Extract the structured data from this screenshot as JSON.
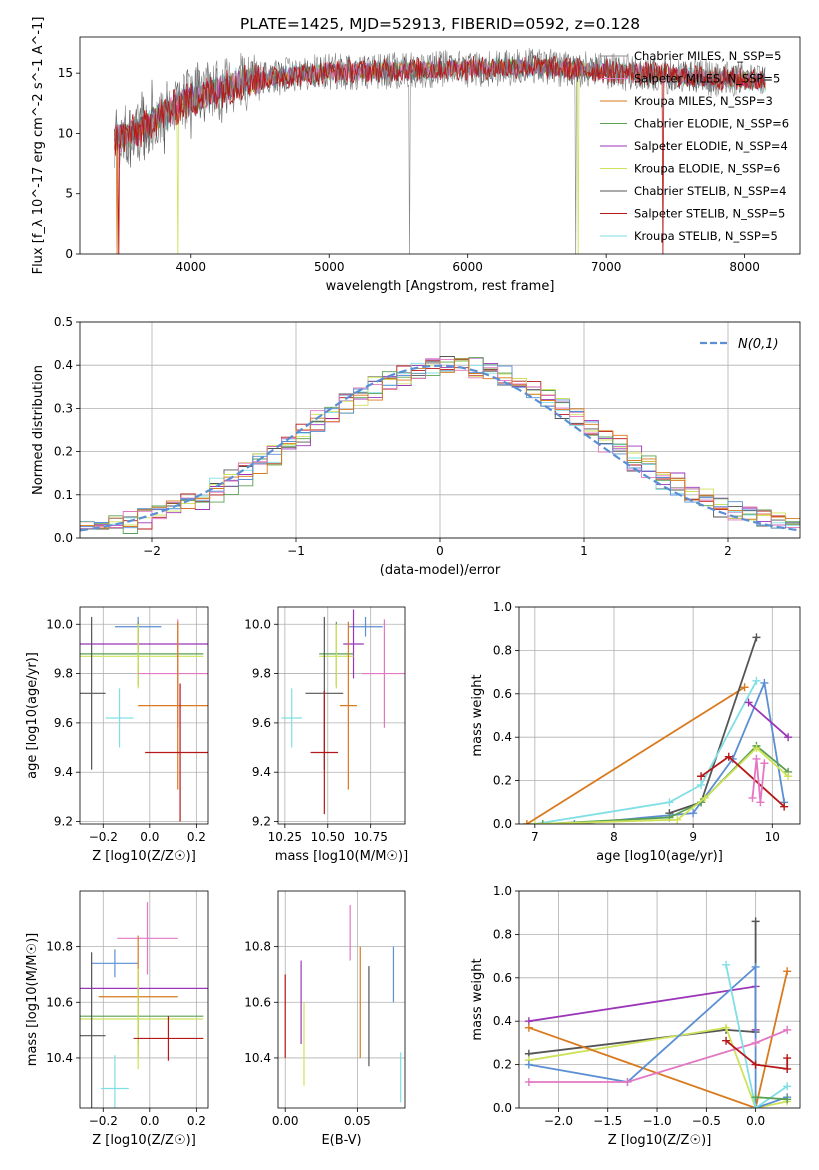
{
  "figure": {
    "title": "PLATE=1425, MJD=52913, FIBERID=0592, z=0.128"
  },
  "chart_data": [
    {
      "id": "spectrum",
      "type": "line",
      "xlabel": "wavelength [Angstrom, rest frame]",
      "ylabel": "Flux [f_λ 10^-17 erg cm^-2 s^-1 A^-1]",
      "xlim": [
        3200,
        8400
      ],
      "ylim": [
        0,
        18
      ],
      "xticks": [
        4000,
        5000,
        6000,
        7000,
        8000
      ],
      "yticks": [
        0,
        5,
        10,
        15
      ],
      "grid": false,
      "legend_position": "right",
      "data_range": [
        3450,
        8150
      ],
      "series": [
        {
          "name": "Chabrier MILES, N_SSP=5",
          "color": "#888888"
        },
        {
          "name": "Salpeter MILES, N_SSP=5",
          "color": "#e377c2"
        },
        {
          "name": "Kroupa MILES, N_SSP=3",
          "color": "#d97a1e"
        },
        {
          "name": "Chabrier ELODIE, N_SSP=6",
          "color": "#5aa052"
        },
        {
          "name": "Salpeter ELODIE, N_SSP=4",
          "color": "#9b36b8"
        },
        {
          "name": "Kroupa ELODIE, N_SSP=6",
          "color": "#cfe25a"
        },
        {
          "name": "Chabrier STELIB, N_SSP=4",
          "color": "#555555"
        },
        {
          "name": "Salpeter STELIB, N_SSP=5",
          "color": "#b51818"
        },
        {
          "name": "Kroupa STELIB, N_SSP=5",
          "color": "#7fdfe5"
        }
      ]
    },
    {
      "id": "residuals",
      "type": "line",
      "xlabel": "(data-model)/error",
      "ylabel": "Normed distribution",
      "xlim": [
        -2.5,
        2.5
      ],
      "ylim": [
        0,
        0.5
      ],
      "xticks": [
        -2,
        -1,
        0,
        1,
        2
      ],
      "yticks": [
        0.0,
        0.1,
        0.2,
        0.3,
        0.4,
        0.5
      ],
      "grid": true,
      "legend_position": "top-right",
      "reference_curve": {
        "name": "N(0,1)",
        "color": "#5b8fd4"
      },
      "histogram_colors": [
        "#555555",
        "#b51818",
        "#9b36b8",
        "#7fdfe5",
        "#cfe25a",
        "#5aa052",
        "#e377c2",
        "#5b8fd4",
        "#d97a1e"
      ]
    },
    {
      "id": "age-vs-z",
      "type": "scatter",
      "xlabel": "Z [log10(Z/Z☉)]",
      "ylabel": "age [log10(age/yr)]",
      "xlim": [
        -0.3,
        0.25
      ],
      "ylim": [
        9.19,
        10.07
      ],
      "xticks": [
        -0.2,
        0.0,
        0.2
      ],
      "yticks": [
        9.2,
        9.4,
        9.6,
        9.8,
        10.0
      ],
      "grid": true,
      "points": [
        {
          "x": -0.05,
          "y": 9.99,
          "xerr": 0.1,
          "yerr": 0.04,
          "color": "#5b8fd4"
        },
        {
          "x": -0.05,
          "y": 9.92,
          "xerr": 0.3,
          "yerr": 0.06,
          "color": "#9b36b8"
        },
        {
          "x": -0.05,
          "y": 9.88,
          "xerr": 0.28,
          "yerr": 0.13,
          "color": "#5aa052"
        },
        {
          "x": -0.05,
          "y": 9.87,
          "xerr": 0.28,
          "yerr": 0.13,
          "color": "#cfe25a"
        },
        {
          "x": 0.12,
          "y": 9.8,
          "xerr": 0.17,
          "yerr": 0.22,
          "color": "#e377c2"
        },
        {
          "x": -0.25,
          "y": 9.72,
          "xerr": 0.06,
          "yerr": 0.31,
          "color": "#555555"
        },
        {
          "x": 0.12,
          "y": 9.67,
          "xerr": 0.17,
          "yerr": 0.34,
          "color": "#d97a1e"
        },
        {
          "x": -0.13,
          "y": 9.62,
          "xerr": 0.06,
          "yerr": 0.12,
          "color": "#7fdfe5"
        },
        {
          "x": 0.13,
          "y": 9.48,
          "xerr": 0.15,
          "yerr": 0.28,
          "color": "#b51818"
        }
      ]
    },
    {
      "id": "age-vs-mass",
      "type": "scatter",
      "xlabel": "mass [log10(M/M☉)]",
      "ylabel": "",
      "xlim": [
        10.21,
        10.95
      ],
      "ylim": [
        9.19,
        10.07
      ],
      "xticks": [
        10.25,
        10.5,
        10.75
      ],
      "yticks": [
        9.2,
        9.4,
        9.6,
        9.8,
        10.0
      ],
      "grid": true,
      "points": [
        {
          "x": 10.72,
          "y": 9.99,
          "xerr": 0.1,
          "yerr": 0.04,
          "color": "#5b8fd4"
        },
        {
          "x": 10.65,
          "y": 9.92,
          "xerr": 0.06,
          "yerr": 0.14,
          "color": "#9b36b8"
        },
        {
          "x": 10.55,
          "y": 9.88,
          "xerr": 0.1,
          "yerr": 0.13,
          "color": "#5aa052"
        },
        {
          "x": 10.55,
          "y": 9.87,
          "xerr": 0.1,
          "yerr": 0.13,
          "color": "#cfe25a"
        },
        {
          "x": 10.83,
          "y": 9.8,
          "xerr": 0.13,
          "yerr": 0.22,
          "color": "#e377c2"
        },
        {
          "x": 10.48,
          "y": 9.72,
          "xerr": 0.11,
          "yerr": 0.31,
          "color": "#555555"
        },
        {
          "x": 10.62,
          "y": 9.67,
          "xerr": 0.05,
          "yerr": 0.34,
          "color": "#d97a1e"
        },
        {
          "x": 10.29,
          "y": 9.62,
          "xerr": 0.06,
          "yerr": 0.12,
          "color": "#7fdfe5"
        },
        {
          "x": 10.48,
          "y": 9.48,
          "xerr": 0.08,
          "yerr": 0.25,
          "color": "#b51818"
        }
      ]
    },
    {
      "id": "massweight-vs-age",
      "type": "line",
      "xlabel": "age [log10(age/yr)]",
      "ylabel": "mass weight",
      "xlim": [
        6.8,
        10.35
      ],
      "ylim": [
        0,
        1
      ],
      "xticks": [
        7,
        8,
        9,
        10
      ],
      "yticks": [
        0.0,
        0.2,
        0.4,
        0.6,
        0.8,
        1.0
      ],
      "grid": true,
      "series": [
        {
          "color": "#d97a1e",
          "x": [
            6.9,
            9.65
          ],
          "y": [
            0.0,
            0.63
          ]
        },
        {
          "color": "#555555",
          "x": [
            8.7,
            9.1,
            9.8
          ],
          "y": [
            0.05,
            0.1,
            0.86
          ]
        },
        {
          "color": "#7fdfe5",
          "x": [
            7.0,
            8.7,
            9.1,
            9.8
          ],
          "y": [
            0.0,
            0.1,
            0.18,
            0.66
          ]
        },
        {
          "color": "#5b8fd4",
          "x": [
            7.5,
            9.0,
            9.5,
            9.9,
            10.15
          ],
          "y": [
            0.0,
            0.05,
            0.3,
            0.65,
            0.1
          ]
        },
        {
          "color": "#9b36b8",
          "x": [
            9.7,
            10.2
          ],
          "y": [
            0.56,
            0.4
          ]
        },
        {
          "color": "#5aa052",
          "x": [
            7.1,
            8.7,
            9.1,
            9.8,
            10.2
          ],
          "y": [
            0.0,
            0.03,
            0.1,
            0.36,
            0.24
          ]
        },
        {
          "color": "#cfe25a",
          "x": [
            7.0,
            8.8,
            9.15,
            9.8,
            10.2
          ],
          "y": [
            0.0,
            0.02,
            0.12,
            0.35,
            0.22
          ]
        },
        {
          "color": "#b51818",
          "x": [
            9.1,
            9.45,
            10.15
          ],
          "y": [
            0.22,
            0.31,
            0.08
          ]
        },
        {
          "color": "#e377c2",
          "x": [
            9.75,
            9.8,
            9.85,
            9.9
          ],
          "y": [
            0.12,
            0.3,
            0.1,
            0.28
          ]
        }
      ]
    },
    {
      "id": "mass-vs-z",
      "type": "scatter",
      "xlabel": "Z [log10(Z/Z☉)]",
      "ylabel": "mass [log10(M/M☉)]",
      "xlim": [
        -0.3,
        0.25
      ],
      "ylim": [
        10.22,
        11.0
      ],
      "xticks": [
        -0.2,
        0.0,
        0.2
      ],
      "yticks": [
        10.4,
        10.6,
        10.8
      ],
      "grid": true,
      "points": [
        {
          "x": -0.01,
          "y": 10.83,
          "xerr": 0.13,
          "yerr": 0.13,
          "color": "#e377c2"
        },
        {
          "x": -0.15,
          "y": 10.74,
          "xerr": 0.1,
          "yerr": 0.05,
          "color": "#5b8fd4"
        },
        {
          "x": -0.05,
          "y": 10.65,
          "xerr": 0.3,
          "yerr": 0.06,
          "color": "#9b36b8"
        },
        {
          "x": -0.05,
          "y": 10.62,
          "xerr": 0.17,
          "yerr": 0.22,
          "color": "#d97a1e"
        },
        {
          "x": -0.05,
          "y": 10.55,
          "xerr": 0.28,
          "yerr": 0.1,
          "color": "#5aa052"
        },
        {
          "x": -0.05,
          "y": 10.54,
          "xerr": 0.28,
          "yerr": 0.18,
          "color": "#cfe25a"
        },
        {
          "x": -0.25,
          "y": 10.48,
          "xerr": 0.06,
          "yerr": 0.3,
          "color": "#555555"
        },
        {
          "x": 0.08,
          "y": 10.47,
          "xerr": 0.15,
          "yerr": 0.08,
          "color": "#b51818"
        },
        {
          "x": -0.15,
          "y": 10.29,
          "xerr": 0.06,
          "yerr": 0.12,
          "color": "#7fdfe5"
        }
      ]
    },
    {
      "id": "mass-vs-ebv",
      "type": "scatter",
      "xlabel": "E(B-V)",
      "ylabel": "",
      "xlim": [
        -0.005,
        0.083
      ],
      "ylim": [
        10.22,
        11.0
      ],
      "xticks": [
        0.0,
        0.05
      ],
      "yticks": [
        10.4,
        10.6,
        10.8
      ],
      "grid": true,
      "points": [
        {
          "x": 0.045,
          "y": 10.85,
          "yerr": 0.1,
          "color": "#e377c2"
        },
        {
          "x": 0.075,
          "y": 10.7,
          "yerr": 0.1,
          "color": "#5b8fd4"
        },
        {
          "x": 0.011,
          "y": 10.6,
          "yerr": 0.15,
          "color": "#9b36b8"
        },
        {
          "x": 0.052,
          "y": 10.6,
          "yerr": 0.2,
          "color": "#d97a1e"
        },
        {
          "x": 0.013,
          "y": 10.45,
          "yerr": 0.15,
          "color": "#cfe25a"
        },
        {
          "x": 0.0,
          "y": 10.55,
          "yerr": 0.15,
          "color": "#b51818"
        },
        {
          "x": 0.058,
          "y": 10.55,
          "yerr": 0.18,
          "color": "#555555"
        },
        {
          "x": 0.08,
          "y": 10.33,
          "yerr": 0.09,
          "color": "#7fdfe5"
        }
      ]
    },
    {
      "id": "massweight-vs-z",
      "type": "line",
      "xlabel": "Z [log10(Z/Z☉)]",
      "ylabel": "mass weight",
      "xlim": [
        -2.4,
        0.45
      ],
      "ylim": [
        0,
        1
      ],
      "xticks": [
        -2.0,
        -1.5,
        -1.0,
        -0.5,
        0.0
      ],
      "yticks": [
        0.0,
        0.2,
        0.4,
        0.6,
        0.8,
        1.0
      ],
      "grid": true,
      "series": [
        {
          "color": "#9b36b8",
          "x": [
            -2.3,
            0.0,
            0.0
          ],
          "y": [
            0.4,
            0.56,
            0.36
          ]
        },
        {
          "color": "#555555",
          "x": [
            -2.3,
            -0.3,
            0.0,
            0.0
          ],
          "y": [
            0.25,
            0.36,
            0.35,
            0.86
          ]
        },
        {
          "color": "#cfe25a",
          "x": [
            -2.3,
            -0.3,
            0.0,
            0.32
          ],
          "y": [
            0.22,
            0.37,
            0.0,
            0.03
          ]
        },
        {
          "color": "#d97a1e",
          "x": [
            -2.3,
            0.0,
            0.32
          ],
          "y": [
            0.37,
            0.0,
            0.63
          ]
        },
        {
          "color": "#5b8fd4",
          "x": [
            -2.3,
            -1.3,
            0.0,
            0.0,
            0.32
          ],
          "y": [
            0.2,
            0.12,
            0.65,
            0.0,
            0.05
          ]
        },
        {
          "color": "#e377c2",
          "x": [
            -2.3,
            -1.3,
            0.0,
            0.32
          ],
          "y": [
            0.12,
            0.12,
            0.3,
            0.36
          ]
        },
        {
          "color": "#7fdfe5",
          "x": [
            -0.3,
            0.0,
            0.32
          ],
          "y": [
            0.66,
            0.0,
            0.1
          ]
        },
        {
          "color": "#b51818",
          "x": [
            -0.3,
            0.0,
            0.32,
            0.32
          ],
          "y": [
            0.31,
            0.2,
            0.18,
            0.23
          ]
        },
        {
          "color": "#5aa052",
          "x": [
            0.0,
            0.32
          ],
          "y": [
            0.05,
            0.04
          ]
        }
      ]
    }
  ]
}
